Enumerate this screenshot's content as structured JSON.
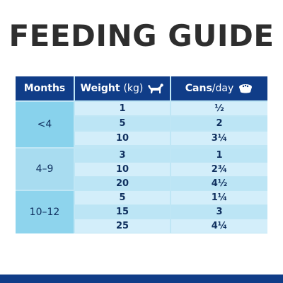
{
  "title": "FEEDING GUIDE",
  "headers": {
    "months": "Months",
    "weight_bold": "Weight",
    "weight_unit": "(kg)",
    "weight_icon": "dog-icon",
    "cans_bold": "Cans",
    "cans_unit": "/day",
    "cans_icon": "food-bowl-icon"
  },
  "groups": [
    {
      "months": "<4",
      "rows": [
        {
          "weight": "1",
          "cans": "½"
        },
        {
          "weight": "5",
          "cans": "2"
        },
        {
          "weight": "10",
          "cans": "3¼"
        }
      ]
    },
    {
      "months": "4–9",
      "rows": [
        {
          "weight": "3",
          "cans": "1"
        },
        {
          "weight": "10",
          "cans": "2¾"
        },
        {
          "weight": "20",
          "cans": "4½"
        }
      ]
    },
    {
      "months": "10–12",
      "rows": [
        {
          "weight": "5",
          "cans": "1¼"
        },
        {
          "weight": "15",
          "cans": "3"
        },
        {
          "weight": "25",
          "cans": "4¼"
        }
      ]
    }
  ],
  "colors": {
    "header": "#103d88",
    "light_row": "#d3eefa",
    "dark_row": "#bce5f5",
    "months_cell": "#88d2ec"
  }
}
